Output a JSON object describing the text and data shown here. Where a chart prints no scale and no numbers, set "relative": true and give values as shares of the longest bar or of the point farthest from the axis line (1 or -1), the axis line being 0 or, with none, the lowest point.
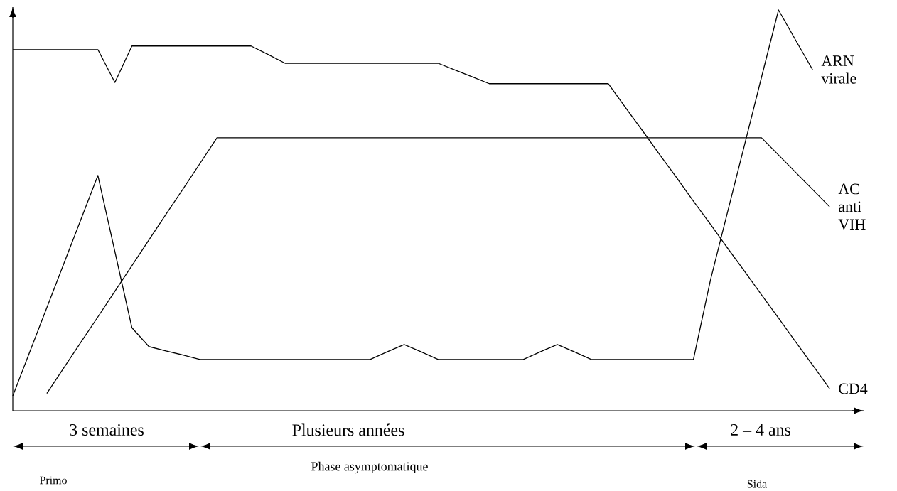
{
  "chart_data": {
    "type": "line",
    "relative": true,
    "legend": false,
    "marker": "none",
    "line_style": "solid",
    "categories": [
      null,
      null,
      null,
      null,
      null,
      null,
      null,
      null,
      null,
      null,
      null,
      null,
      null,
      null,
      null,
      null,
      null,
      null,
      null,
      null,
      null,
      null,
      null,
      null,
      null,
      null,
      null,
      null,
      null,
      null,
      null,
      null,
      null,
      null,
      null,
      null,
      null,
      null,
      null,
      null,
      null,
      null,
      null,
      null,
      null,
      null,
      null,
      null,
      null,
      null,
      null
    ],
    "series": [
      {
        "name": "ARN virale",
        "color": "#000000",
        "values": [
          0.037,
          0.147,
          0.257,
          0.367,
          0.477,
          0.587,
          0.397,
          0.207,
          0.16,
          0.149,
          0.139,
          0.128,
          0.128,
          0.128,
          0.128,
          0.128,
          0.128,
          0.128,
          0.128,
          0.128,
          0.128,
          0.128,
          0.147,
          0.165,
          0.147,
          0.128,
          0.128,
          0.128,
          0.128,
          0.128,
          0.128,
          0.147,
          0.165,
          0.147,
          0.128,
          0.128,
          0.128,
          0.128,
          0.128,
          0.128,
          0.128,
          0.326,
          0.495,
          0.663,
          0.832,
          1,
          0.925,
          0.851,
          null,
          null,
          null
        ]
      },
      {
        "name": "AC anti VIH",
        "color": "#000000",
        "values": [
          null,
          null,
          0.043,
          0.107,
          0.171,
          0.234,
          0.298,
          0.362,
          0.426,
          0.49,
          0.553,
          0.617,
          0.681,
          0.681,
          0.681,
          0.681,
          0.681,
          0.681,
          0.681,
          0.681,
          0.681,
          0.681,
          0.681,
          0.681,
          0.681,
          0.681,
          0.681,
          0.681,
          0.681,
          0.681,
          0.681,
          0.681,
          0.681,
          0.681,
          0.681,
          0.681,
          0.681,
          0.681,
          0.681,
          0.681,
          0.681,
          0.681,
          0.681,
          0.681,
          0.681,
          0.638,
          0.595,
          0.552,
          0.509,
          null,
          null
        ]
      },
      {
        "name": "CD4",
        "color": "#000000",
        "values": [
          0.901,
          0.901,
          0.901,
          0.901,
          0.901,
          0.901,
          0.819,
          0.91,
          0.91,
          0.91,
          0.91,
          0.91,
          0.91,
          0.91,
          0.91,
          0.889,
          0.867,
          0.867,
          0.867,
          0.867,
          0.867,
          0.867,
          0.867,
          0.867,
          0.867,
          0.867,
          0.85,
          0.833,
          0.816,
          0.816,
          0.816,
          0.816,
          0.816,
          0.816,
          0.816,
          0.816,
          0.757,
          0.699,
          0.64,
          0.582,
          0.523,
          0.465,
          0.406,
          0.348,
          0.289,
          0.231,
          0.172,
          0.114,
          0.055,
          null,
          null
        ]
      }
    ],
    "annotations": [
      "3 semaines",
      "Plusieurs années",
      "2 – 4 ans",
      "Primo",
      "Phase asymptomatique",
      "Sida"
    ]
  }
}
